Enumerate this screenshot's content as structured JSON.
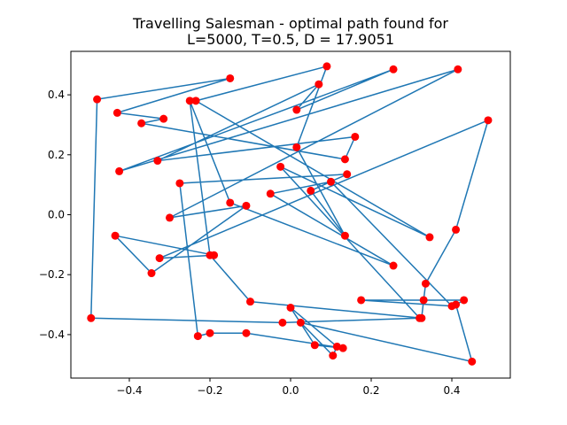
{
  "title_lines": [
    "Travelling Salesman - optimal path found for",
    "L=5000, T=0.5, D = 17.9051"
  ],
  "colors": {
    "line": "#1f77b4",
    "point": "#ff0000"
  },
  "chart_data": {
    "type": "line",
    "title": "Travelling Salesman - optimal path found for L=5000, T=0.5, D = 17.9051",
    "xlabel": "",
    "ylabel": "",
    "xlim": [
      -0.545,
      0.545
    ],
    "ylim": [
      -0.545,
      0.545
    ],
    "xticks": [
      -0.4,
      -0.2,
      0.0,
      0.2,
      0.4
    ],
    "yticks": [
      -0.4,
      -0.2,
      0.0,
      0.2,
      0.4
    ],
    "xtick_labels": [
      "−0.4",
      "−0.2",
      "0.0",
      "0.2",
      "0.4"
    ],
    "ytick_labels": [
      "−0.4",
      "−0.2",
      "0.0",
      "0.2",
      "0.4"
    ],
    "grid": false,
    "markers": true,
    "x": [
      -0.495,
      -0.48,
      -0.15,
      -0.43,
      -0.315,
      -0.37,
      0.135,
      0.16,
      -0.33,
      0.07,
      0.015,
      0.255,
      -0.425,
      0.415,
      -0.3,
      -0.11,
      -0.345,
      -0.435,
      -0.19,
      -0.325,
      0.49,
      0.41,
      0.335,
      0.33,
      0.325,
      -0.1,
      -0.2,
      -0.25,
      -0.15,
      0.255,
      -0.05,
      0.1,
      0.4,
      0.175,
      0.43,
      0.41,
      0.45,
      0.025,
      0.105,
      0.115,
      0.0,
      0.06,
      0.13,
      -0.11,
      -0.2,
      -0.23,
      -0.275,
      0.14,
      0.05,
      0.135,
      0.015,
      0.09,
      -0.235,
      0.345,
      -0.025,
      0.32,
      -0.02
    ],
    "y": [
      -0.345,
      0.385,
      0.455,
      0.34,
      0.32,
      0.305,
      0.185,
      0.26,
      0.18,
      0.435,
      0.35,
      0.485,
      0.145,
      0.485,
      -0.01,
      0.03,
      -0.195,
      -0.07,
      -0.135,
      -0.145,
      0.315,
      -0.05,
      -0.23,
      -0.285,
      -0.345,
      -0.29,
      -0.135,
      0.38,
      0.04,
      -0.17,
      0.07,
      0.11,
      -0.305,
      -0.285,
      -0.285,
      -0.3,
      -0.49,
      -0.36,
      -0.47,
      -0.44,
      -0.31,
      -0.435,
      -0.445,
      -0.395,
      -0.395,
      -0.405,
      0.105,
      0.135,
      0.08,
      -0.07,
      0.225,
      0.495,
      0.38,
      -0.075,
      0.16,
      -0.345,
      -0.36
    ]
  }
}
